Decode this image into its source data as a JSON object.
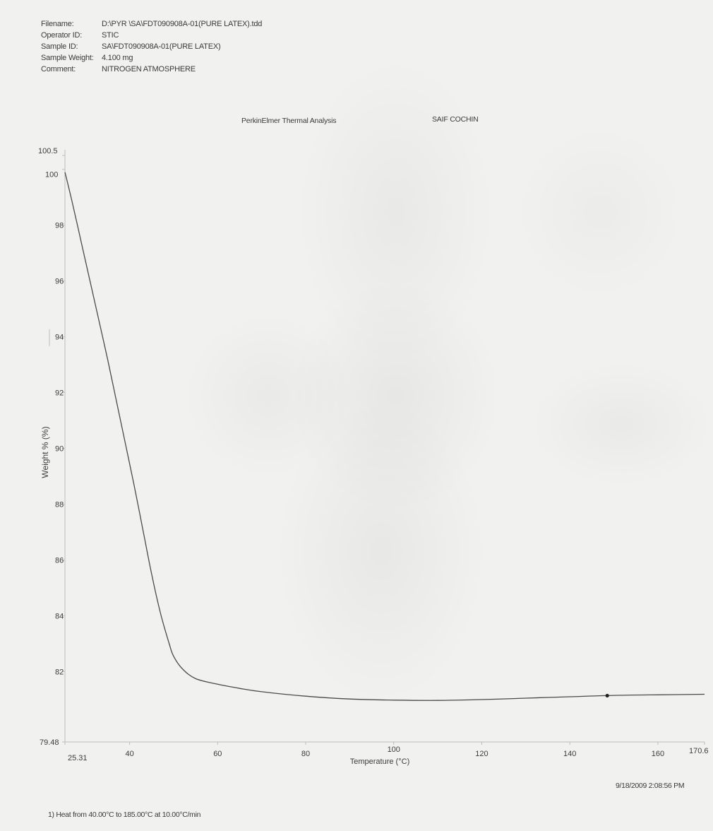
{
  "header": {
    "fields": [
      {
        "label": "Filename:",
        "value": "D:\\PYR  \\SA\\FDT090908A-01(PURE LATEX).tdd"
      },
      {
        "label": "Operator ID:",
        "value": "STIC"
      },
      {
        "label": "Sample ID:",
        "value": "SA\\FDT090908A-01(PURE LATEX)"
      },
      {
        "label": "Sample Weight:",
        "value": "4.100 mg"
      },
      {
        "label": "Comment:",
        "value": "NITROGEN ATMOSPHERE"
      }
    ]
  },
  "titles": {
    "center": "PerkinElmer Thermal Analysis",
    "right": "SAIF COCHIN"
  },
  "footer": {
    "timestamp": "9/18/2009 2:08:56 PM",
    "method": "1)  Heat from 40.00°C to 185.00°C at 10.00°C/min"
  },
  "colors": {
    "curve": "#4a4a4a",
    "axis": "#bdbdbd",
    "text": "#3a3a3a",
    "background": "#f1f1ef"
  },
  "chart_data": {
    "type": "line",
    "title": "",
    "xlabel": "Temperature (°C)",
    "ylabel": "Weight % (%)",
    "xlim": [
      25.31,
      170.6
    ],
    "ylim": [
      79.48,
      100.5
    ],
    "x_ticks": [
      {
        "value": 25.31,
        "label": "25.31"
      },
      {
        "value": 40,
        "label": "40"
      },
      {
        "value": 60,
        "label": "60"
      },
      {
        "value": 80,
        "label": "80"
      },
      {
        "value": 100,
        "label": "100"
      },
      {
        "value": 120,
        "label": "120"
      },
      {
        "value": 140,
        "label": "140"
      },
      {
        "value": 160,
        "label": "160"
      },
      {
        "value": 170.6,
        "label": "170.6"
      }
    ],
    "y_ticks": [
      {
        "value": 79.48,
        "label": "79.48"
      },
      {
        "value": 82,
        "label": "82"
      },
      {
        "value": 84,
        "label": "84"
      },
      {
        "value": 86,
        "label": "86"
      },
      {
        "value": 88,
        "label": "88"
      },
      {
        "value": 90,
        "label": "90"
      },
      {
        "value": 92,
        "label": "92"
      },
      {
        "value": 94,
        "label": "94"
      },
      {
        "value": 96,
        "label": "96"
      },
      {
        "value": 98,
        "label": "98"
      },
      {
        "value": 100,
        "label": "100"
      },
      {
        "value": 100.5,
        "label": "100.5"
      }
    ],
    "grid": false,
    "series": [
      {
        "x": [
          25.31,
          27,
          29,
          31,
          33,
          35,
          37,
          39,
          41,
          43,
          45,
          47,
          49,
          50,
          52,
          55,
          60,
          65,
          70,
          80,
          90,
          100,
          110,
          120,
          130,
          140,
          150,
          160,
          170.6
        ],
        "y": [
          99.9,
          98.8,
          97.4,
          96.0,
          94.6,
          93.2,
          91.7,
          90.2,
          88.7,
          87.1,
          85.5,
          84.1,
          83.0,
          82.55,
          82.1,
          81.75,
          81.55,
          81.4,
          81.28,
          81.12,
          81.02,
          80.98,
          80.97,
          81.0,
          81.05,
          81.1,
          81.15,
          81.17,
          81.19
        ]
      }
    ],
    "markers": [
      {
        "x": 148.5,
        "y": 81.14
      }
    ]
  }
}
